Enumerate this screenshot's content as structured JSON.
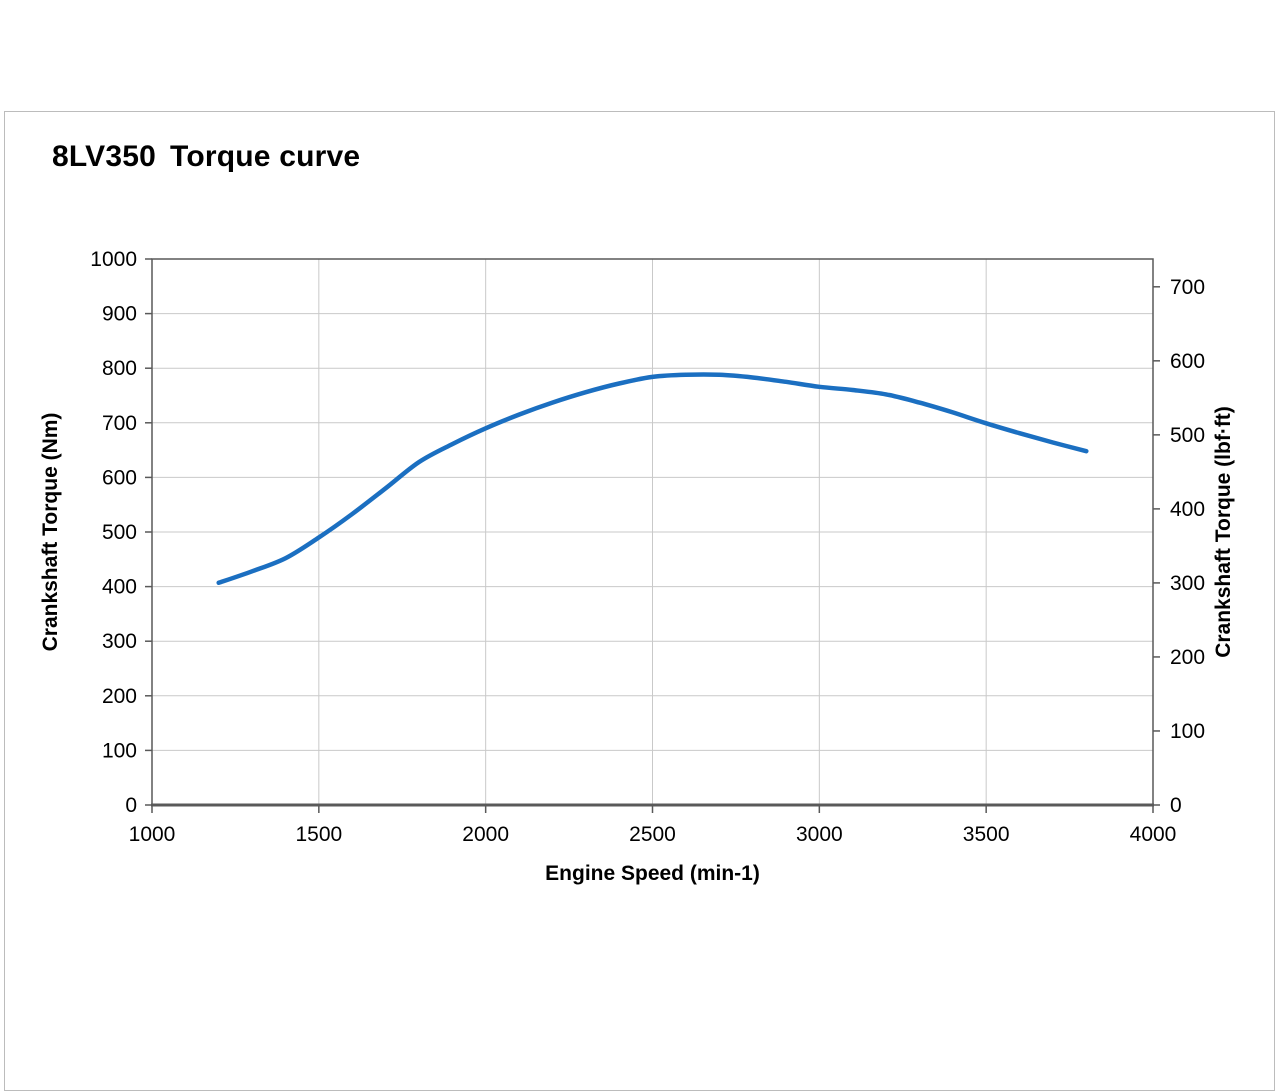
{
  "header": {
    "model": "8LV350",
    "title": "Torque curve"
  },
  "chart_data": {
    "type": "line",
    "title": "8LV350 Torque curve",
    "xlabel": "Engine Speed (min-1)",
    "ylabel_left": "Crankshaft Torque (Nm)",
    "ylabel_right": "Crankshaft Torque (lbf·ft)",
    "xlim": [
      1000,
      4000
    ],
    "ylim_left": [
      0,
      1000
    ],
    "ylim_right": [
      0,
      737.6
    ],
    "nm_per_lbfft": 1.35582,
    "x_ticks": [
      1000,
      1500,
      2000,
      2500,
      3000,
      3500,
      4000
    ],
    "y_ticks_left": [
      0,
      100,
      200,
      300,
      400,
      500,
      600,
      700,
      800,
      900,
      1000
    ],
    "y_ticks_right": [
      0,
      100,
      200,
      300,
      400,
      500,
      600,
      700
    ],
    "grid": true,
    "legend": false,
    "series": [
      {
        "name": "Crankshaft Torque (Nm)",
        "color": "#1b6fc1",
        "x": [
          1200,
          1300,
          1400,
          1500,
          1600,
          1700,
          1800,
          1900,
          2000,
          2100,
          2200,
          2300,
          2400,
          2500,
          2600,
          2700,
          2800,
          2900,
          3000,
          3100,
          3200,
          3300,
          3400,
          3500,
          3600,
          3700,
          3800
        ],
        "y_nm": [
          407,
          428,
          452,
          490,
          533,
          580,
          628,
          661,
          690,
          715,
          737,
          756,
          772,
          784,
          788,
          788,
          783,
          775,
          766,
          760,
          752,
          737,
          719,
          699,
          681,
          664,
          648
        ]
      }
    ]
  },
  "colors": {
    "line": "#1b6fc1",
    "grid": "#c9c9c9",
    "axis": "#595959",
    "text": "#000000",
    "panel_border": "#bcbcbc"
  }
}
